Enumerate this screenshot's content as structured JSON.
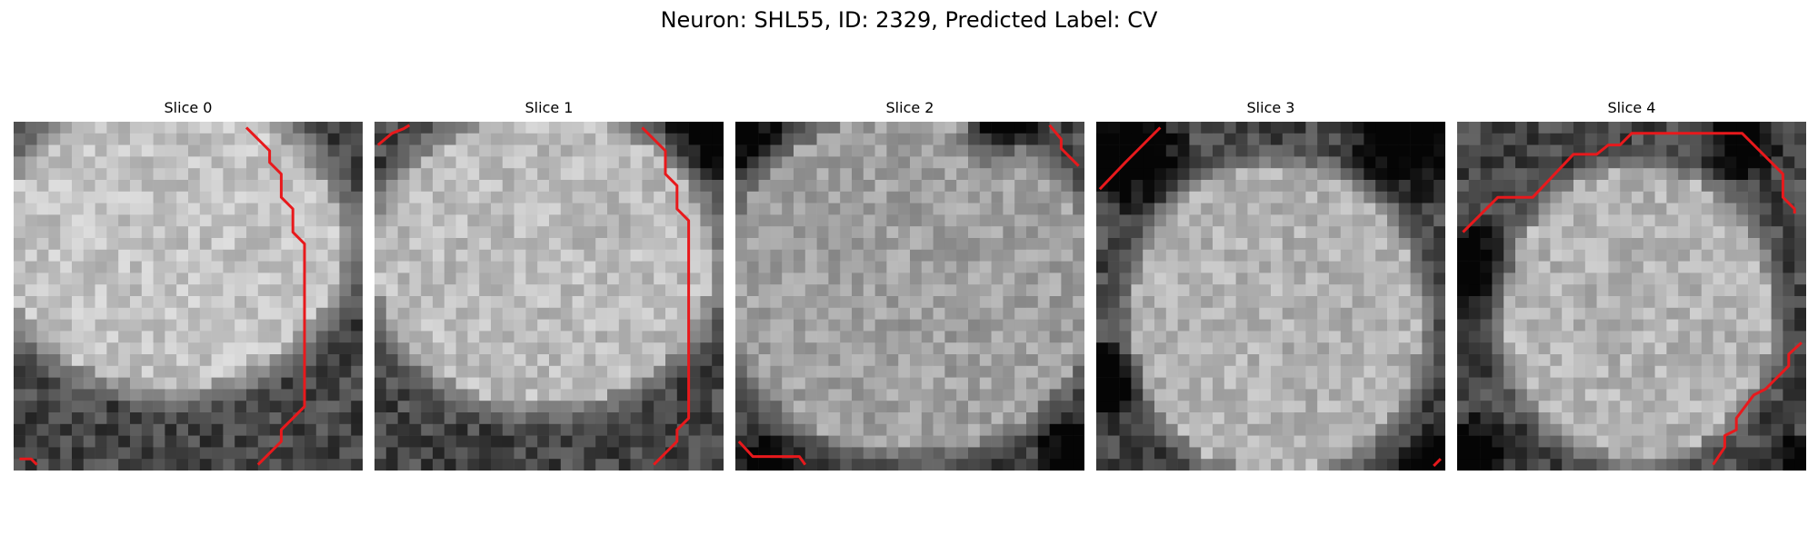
{
  "figure": {
    "title": "Neuron: SHL55, ID: 2329, Predicted Label: CV"
  },
  "panels": [
    {
      "label": "Slice 0"
    },
    {
      "label": "Slice 1"
    },
    {
      "label": "Slice 2"
    },
    {
      "label": "Slice 3"
    },
    {
      "label": "Slice 4"
    }
  ],
  "colors": {
    "contour": "#e8191c"
  }
}
